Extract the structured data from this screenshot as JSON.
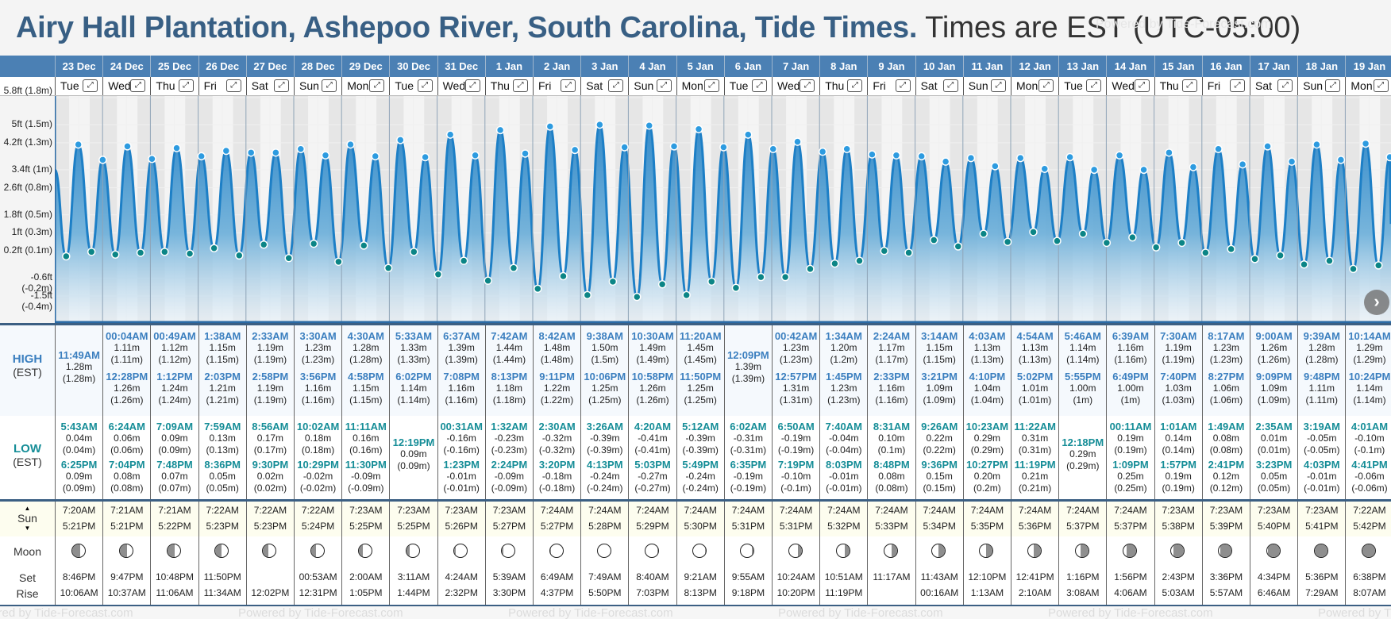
{
  "header": {
    "place": "Airy Hall Plantation, Ashepoo River, South Carolina, Tide Times.",
    "timezone": "Times are EST (UTC-05:00)",
    "watermark": "Powered by Tide-Forecast.com"
  },
  "labels": {
    "high": "HIGH",
    "high_tz": "(EST)",
    "low": "LOW",
    "low_tz": "(EST)",
    "sun": "Sun",
    "moon": "Moon",
    "set": "Set",
    "rise": "Rise",
    "expand_glyph": "⤢",
    "next_glyph": "›"
  },
  "yaxis": [
    "5.8ft (1.8m)",
    "5ft (1.5m)",
    "4.2ft (1.3m)",
    "3.4ft (1m)",
    "2.6ft (0.8m)",
    "1.8ft (0.5m)",
    "1ft (0.3m)",
    "0.2ft (0.1m)",
    "-0.6ft (-0.2m)",
    "-1.5ft (-0.4m)"
  ],
  "colors": {
    "header_bar": "#4b80b4",
    "title": "#385f84",
    "high_time": "#3b7fbf",
    "low_time": "#158d97",
    "wave": "#1d7fc6",
    "high_dot": "#2d9be0",
    "low_dot": "#0b8586"
  },
  "days": [
    {
      "date": "23 Dec",
      "dow": "Tue",
      "high": [
        [
          "11:49AM",
          "1.28m",
          "(1.28m)"
        ]
      ],
      "low": [
        [
          "5:43AM",
          "0.04m",
          "(0.04m)"
        ],
        [
          "6:25PM",
          "0.09m",
          "(0.09m)"
        ]
      ],
      "sunrise": "7:20AM",
      "sunset": "5:21PM",
      "moon_phase": 0.16,
      "moonset": "8:46PM",
      "moonrise": "10:06AM"
    },
    {
      "date": "24 Dec",
      "dow": "Wed",
      "high": [
        [
          "00:04AM",
          "1.11m",
          "(1.11m)"
        ],
        [
          "12:28PM",
          "1.26m",
          "(1.26m)"
        ]
      ],
      "low": [
        [
          "6:24AM",
          "0.06m",
          "(0.06m)"
        ],
        [
          "7:04PM",
          "0.08m",
          "(0.08m)"
        ]
      ],
      "sunrise": "7:21AM",
      "sunset": "5:21PM",
      "moon_phase": 0.2,
      "moonset": "9:47PM",
      "moonrise": "10:37AM"
    },
    {
      "date": "25 Dec",
      "dow": "Thu",
      "high": [
        [
          "00:49AM",
          "1.12m",
          "(1.12m)"
        ],
        [
          "1:12PM",
          "1.24m",
          "(1.24m)"
        ]
      ],
      "low": [
        [
          "7:09AM",
          "0.09m",
          "(0.09m)"
        ],
        [
          "7:48PM",
          "0.07m",
          "(0.07m)"
        ]
      ],
      "sunrise": "7:21AM",
      "sunset": "5:22PM",
      "moon_phase": 0.23,
      "moonset": "10:48PM",
      "moonrise": "11:06AM"
    },
    {
      "date": "26 Dec",
      "dow": "Fri",
      "high": [
        [
          "1:38AM",
          "1.15m",
          "(1.15m)"
        ],
        [
          "2:03PM",
          "1.21m",
          "(1.21m)"
        ]
      ],
      "low": [
        [
          "7:59AM",
          "0.13m",
          "(0.13m)"
        ],
        [
          "8:36PM",
          "0.05m",
          "(0.05m)"
        ]
      ],
      "sunrise": "7:22AM",
      "sunset": "5:23PM",
      "moon_phase": 0.25,
      "moonset": "11:50PM",
      "moonrise": "11:34AM"
    },
    {
      "date": "27 Dec",
      "dow": "Sat",
      "high": [
        [
          "2:33AM",
          "1.19m",
          "(1.19m)"
        ],
        [
          "2:58PM",
          "1.19m",
          "(1.19m)"
        ]
      ],
      "low": [
        [
          "8:56AM",
          "0.17m",
          "(0.17m)"
        ],
        [
          "9:30PM",
          "0.02m",
          "(0.02m)"
        ]
      ],
      "sunrise": "7:22AM",
      "sunset": "5:23PM",
      "moon_phase": 0.28,
      "moonset": "",
      "moonrise": "12:02PM"
    },
    {
      "date": "28 Dec",
      "dow": "Sun",
      "high": [
        [
          "3:30AM",
          "1.23m",
          "(1.23m)"
        ],
        [
          "3:56PM",
          "1.16m",
          "(1.16m)"
        ]
      ],
      "low": [
        [
          "10:02AM",
          "0.18m",
          "(0.18m)"
        ],
        [
          "10:29PM",
          "-0.02m",
          "(-0.02m)"
        ]
      ],
      "sunrise": "7:22AM",
      "sunset": "5:24PM",
      "moon_phase": 0.31,
      "moonset": "00:53AM",
      "moonrise": "12:31PM"
    },
    {
      "date": "29 Dec",
      "dow": "Mon",
      "high": [
        [
          "4:30AM",
          "1.28m",
          "(1.28m)"
        ],
        [
          "4:58PM",
          "1.15m",
          "(1.15m)"
        ]
      ],
      "low": [
        [
          "11:11AM",
          "0.16m",
          "(0.16m)"
        ],
        [
          "11:30PM",
          "-0.09m",
          "(-0.09m)"
        ]
      ],
      "sunrise": "7:23AM",
      "sunset": "5:25PM",
      "moon_phase": 0.35,
      "moonset": "2:00AM",
      "moonrise": "1:05PM"
    },
    {
      "date": "30 Dec",
      "dow": "Tue",
      "high": [
        [
          "5:33AM",
          "1.33m",
          "(1.33m)"
        ],
        [
          "6:02PM",
          "1.14m",
          "(1.14m)"
        ]
      ],
      "low": [
        [
          "12:19PM",
          "0.09m",
          "(0.09m)"
        ]
      ],
      "sunrise": "7:23AM",
      "sunset": "5:25PM",
      "moon_phase": 0.39,
      "moonset": "3:11AM",
      "moonrise": "1:44PM"
    },
    {
      "date": "31 Dec",
      "dow": "Wed",
      "high": [
        [
          "6:37AM",
          "1.39m",
          "(1.39m)"
        ],
        [
          "7:08PM",
          "1.16m",
          "(1.16m)"
        ]
      ],
      "low": [
        [
          "00:31AM",
          "-0.16m",
          "(-0.16m)"
        ],
        [
          "1:23PM",
          "-0.01m",
          "(-0.01m)"
        ]
      ],
      "sunrise": "7:23AM",
      "sunset": "5:26PM",
      "moon_phase": 0.43,
      "moonset": "4:24AM",
      "moonrise": "2:32PM"
    },
    {
      "date": "1 Jan",
      "dow": "Thu",
      "high": [
        [
          "7:42AM",
          "1.44m",
          "(1.44m)"
        ],
        [
          "8:13PM",
          "1.18m",
          "(1.18m)"
        ]
      ],
      "low": [
        [
          "1:32AM",
          "-0.23m",
          "(-0.23m)"
        ],
        [
          "2:24PM",
          "-0.09m",
          "(-0.09m)"
        ]
      ],
      "sunrise": "7:23AM",
      "sunset": "5:27PM",
      "moon_phase": 0.46,
      "moonset": "5:39AM",
      "moonrise": "3:30PM"
    },
    {
      "date": "2 Jan",
      "dow": "Fri",
      "high": [
        [
          "8:42AM",
          "1.48m",
          "(1.48m)"
        ],
        [
          "9:11PM",
          "1.22m",
          "(1.22m)"
        ]
      ],
      "low": [
        [
          "2:30AM",
          "-0.32m",
          "(-0.32m)"
        ],
        [
          "3:20PM",
          "-0.18m",
          "(-0.18m)"
        ]
      ],
      "sunrise": "7:24AM",
      "sunset": "5:27PM",
      "moon_phase": 0.49,
      "moonset": "6:49AM",
      "moonrise": "4:37PM"
    },
    {
      "date": "3 Jan",
      "dow": "Sat",
      "high": [
        [
          "9:38AM",
          "1.50m",
          "(1.5m)"
        ],
        [
          "10:06PM",
          "1.25m",
          "(1.25m)"
        ]
      ],
      "low": [
        [
          "3:26AM",
          "-0.39m",
          "(-0.39m)"
        ],
        [
          "4:13PM",
          "-0.24m",
          "(-0.24m)"
        ]
      ],
      "sunrise": "7:24AM",
      "sunset": "5:28PM",
      "moon_phase": 0.5,
      "moonset": "7:49AM",
      "moonrise": "5:50PM"
    },
    {
      "date": "4 Jan",
      "dow": "Sun",
      "high": [
        [
          "10:30AM",
          "1.49m",
          "(1.49m)"
        ],
        [
          "10:58PM",
          "1.26m",
          "(1.26m)"
        ]
      ],
      "low": [
        [
          "4:20AM",
          "-0.41m",
          "(-0.41m)"
        ],
        [
          "5:03PM",
          "-0.27m",
          "(-0.27m)"
        ]
      ],
      "sunrise": "7:24AM",
      "sunset": "5:29PM",
      "moon_phase": 0.52,
      "moonset": "8:40AM",
      "moonrise": "7:03PM"
    },
    {
      "date": "5 Jan",
      "dow": "Mon",
      "high": [
        [
          "11:20AM",
          "1.45m",
          "(1.45m)"
        ],
        [
          "11:50PM",
          "1.25m",
          "(1.25m)"
        ]
      ],
      "low": [
        [
          "5:12AM",
          "-0.39m",
          "(-0.39m)"
        ],
        [
          "5:49PM",
          "-0.24m",
          "(-0.24m)"
        ]
      ],
      "sunrise": "7:24AM",
      "sunset": "5:30PM",
      "moon_phase": 0.55,
      "moonset": "9:21AM",
      "moonrise": "8:13PM"
    },
    {
      "date": "6 Jan",
      "dow": "Tue",
      "high": [
        [
          "12:09PM",
          "1.39m",
          "(1.39m)"
        ]
      ],
      "low": [
        [
          "6:02AM",
          "-0.31m",
          "(-0.31m)"
        ],
        [
          "6:35PM",
          "-0.19m",
          "(-0.19m)"
        ]
      ],
      "sunrise": "7:24AM",
      "sunset": "5:31PM",
      "moon_phase": 0.59,
      "moonset": "9:55AM",
      "moonrise": "9:18PM"
    },
    {
      "date": "7 Jan",
      "dow": "Wed",
      "high": [
        [
          "00:42AM",
          "1.23m",
          "(1.23m)"
        ],
        [
          "12:57PM",
          "1.31m",
          "(1.31m)"
        ]
      ],
      "low": [
        [
          "6:50AM",
          "-0.19m",
          "(-0.19m)"
        ],
        [
          "7:19PM",
          "-0.10m",
          "(-0.1m)"
        ]
      ],
      "sunrise": "7:24AM",
      "sunset": "5:31PM",
      "moon_phase": 0.63,
      "moonset": "10:24AM",
      "moonrise": "10:20PM"
    },
    {
      "date": "8 Jan",
      "dow": "Thu",
      "high": [
        [
          "1:34AM",
          "1.20m",
          "(1.2m)"
        ],
        [
          "1:45PM",
          "1.23m",
          "(1.23m)"
        ]
      ],
      "low": [
        [
          "7:40AM",
          "-0.04m",
          "(-0.04m)"
        ],
        [
          "8:03PM",
          "-0.01m",
          "(-0.01m)"
        ]
      ],
      "sunrise": "7:24AM",
      "sunset": "5:32PM",
      "moon_phase": 0.67,
      "moonset": "10:51AM",
      "moonrise": "11:19PM"
    },
    {
      "date": "9 Jan",
      "dow": "Fri",
      "high": [
        [
          "2:24AM",
          "1.17m",
          "(1.17m)"
        ],
        [
          "2:33PM",
          "1.16m",
          "(1.16m)"
        ]
      ],
      "low": [
        [
          "8:31AM",
          "0.10m",
          "(0.1m)"
        ],
        [
          "8:48PM",
          "0.08m",
          "(0.08m)"
        ]
      ],
      "sunrise": "7:24AM",
      "sunset": "5:33PM",
      "moon_phase": 0.72,
      "moonset": "11:17AM",
      "moonrise": ""
    },
    {
      "date": "10 Jan",
      "dow": "Sat",
      "high": [
        [
          "3:14AM",
          "1.15m",
          "(1.15m)"
        ],
        [
          "3:21PM",
          "1.09m",
          "(1.09m)"
        ]
      ],
      "low": [
        [
          "9:26AM",
          "0.22m",
          "(0.22m)"
        ],
        [
          "9:36PM",
          "0.15m",
          "(0.15m)"
        ]
      ],
      "sunrise": "7:24AM",
      "sunset": "5:34PM",
      "moon_phase": 0.75,
      "moonset": "11:43AM",
      "moonrise": "00:16AM"
    },
    {
      "date": "11 Jan",
      "dow": "Sun",
      "high": [
        [
          "4:03AM",
          "1.13m",
          "(1.13m)"
        ],
        [
          "4:10PM",
          "1.04m",
          "(1.04m)"
        ]
      ],
      "low": [
        [
          "10:23AM",
          "0.29m",
          "(0.29m)"
        ],
        [
          "10:27PM",
          "0.20m",
          "(0.2m)"
        ]
      ],
      "sunrise": "7:24AM",
      "sunset": "5:35PM",
      "moon_phase": 0.76,
      "moonset": "12:10PM",
      "moonrise": "1:13AM"
    },
    {
      "date": "12 Jan",
      "dow": "Mon",
      "high": [
        [
          "4:54AM",
          "1.13m",
          "(1.13m)"
        ],
        [
          "5:02PM",
          "1.01m",
          "(1.01m)"
        ]
      ],
      "low": [
        [
          "11:22AM",
          "0.31m",
          "(0.31m)"
        ],
        [
          "11:19PM",
          "0.21m",
          "(0.21m)"
        ]
      ],
      "sunrise": "7:24AM",
      "sunset": "5:36PM",
      "moon_phase": 0.78,
      "moonset": "12:41PM",
      "moonrise": "2:10AM"
    },
    {
      "date": "13 Jan",
      "dow": "Tue",
      "high": [
        [
          "5:46AM",
          "1.14m",
          "(1.14m)"
        ],
        [
          "5:55PM",
          "1.00m",
          "(1m)"
        ]
      ],
      "low": [
        [
          "12:18PM",
          "0.29m",
          "(0.29m)"
        ]
      ],
      "sunrise": "7:24AM",
      "sunset": "5:37PM",
      "moon_phase": 0.82,
      "moonset": "1:16PM",
      "moonrise": "3:08AM"
    },
    {
      "date": "14 Jan",
      "dow": "Wed",
      "high": [
        [
          "6:39AM",
          "1.16m",
          "(1.16m)"
        ],
        [
          "6:49PM",
          "1.00m",
          "(1m)"
        ]
      ],
      "low": [
        [
          "00:11AM",
          "0.19m",
          "(0.19m)"
        ],
        [
          "1:09PM",
          "0.25m",
          "(0.25m)"
        ]
      ],
      "sunrise": "7:24AM",
      "sunset": "5:37PM",
      "moon_phase": 0.86,
      "moonset": "1:56PM",
      "moonrise": "4:06AM"
    },
    {
      "date": "15 Jan",
      "dow": "Thu",
      "high": [
        [
          "7:30AM",
          "1.19m",
          "(1.19m)"
        ],
        [
          "7:40PM",
          "1.03m",
          "(1.03m)"
        ]
      ],
      "low": [
        [
          "1:01AM",
          "0.14m",
          "(0.14m)"
        ],
        [
          "1:57PM",
          "0.19m",
          "(0.19m)"
        ]
      ],
      "sunrise": "7:23AM",
      "sunset": "5:38PM",
      "moon_phase": 0.9,
      "moonset": "2:43PM",
      "moonrise": "5:03AM"
    },
    {
      "date": "16 Jan",
      "dow": "Fri",
      "high": [
        [
          "8:17AM",
          "1.23m",
          "(1.23m)"
        ],
        [
          "8:27PM",
          "1.06m",
          "(1.06m)"
        ]
      ],
      "low": [
        [
          "1:49AM",
          "0.08m",
          "(0.08m)"
        ],
        [
          "2:41PM",
          "0.12m",
          "(0.12m)"
        ]
      ],
      "sunrise": "7:23AM",
      "sunset": "5:39PM",
      "moon_phase": 0.94,
      "moonset": "3:36PM",
      "moonrise": "5:57AM"
    },
    {
      "date": "17 Jan",
      "dow": "Sat",
      "high": [
        [
          "9:00AM",
          "1.26m",
          "(1.26m)"
        ],
        [
          "9:09PM",
          "1.09m",
          "(1.09m)"
        ]
      ],
      "low": [
        [
          "2:35AM",
          "0.01m",
          "(0.01m)"
        ],
        [
          "3:23PM",
          "0.05m",
          "(0.05m)"
        ]
      ],
      "sunrise": "7:23AM",
      "sunset": "5:40PM",
      "moon_phase": 0.97,
      "moonset": "4:34PM",
      "moonrise": "6:46AM"
    },
    {
      "date": "18 Jan",
      "dow": "Sun",
      "high": [
        [
          "9:39AM",
          "1.28m",
          "(1.28m)"
        ],
        [
          "9:48PM",
          "1.11m",
          "(1.11m)"
        ]
      ],
      "low": [
        [
          "3:19AM",
          "-0.05m",
          "(-0.05m)"
        ],
        [
          "4:03PM",
          "-0.01m",
          "(-0.01m)"
        ]
      ],
      "sunrise": "7:23AM",
      "sunset": "5:41PM",
      "moon_phase": 0.99,
      "moonset": "5:36PM",
      "moonrise": "7:29AM"
    },
    {
      "date": "19 Jan",
      "dow": "Mon",
      "high": [
        [
          "10:14AM",
          "1.29m",
          "(1.29m)"
        ],
        [
          "10:24PM",
          "1.14m",
          "(1.14m)"
        ]
      ],
      "low": [
        [
          "4:01AM",
          "-0.10m",
          "(-0.1m)"
        ],
        [
          "4:41PM",
          "-0.06m",
          "(-0.06m)"
        ]
      ],
      "sunrise": "7:22AM",
      "sunset": "5:42PM",
      "moon_phase": 1.0,
      "moonset": "6:38PM",
      "moonrise": "8:07AM"
    }
  ]
}
